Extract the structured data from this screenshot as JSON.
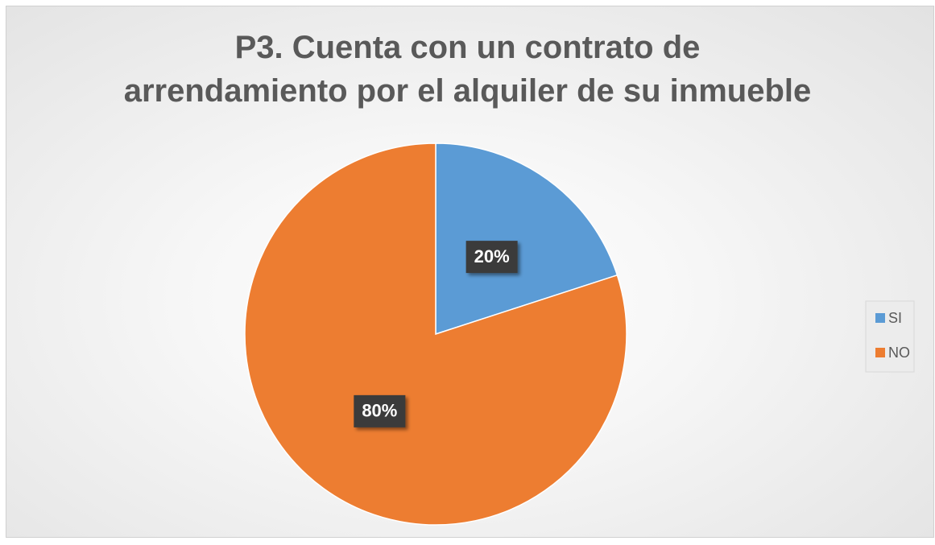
{
  "chart_data": {
    "type": "pie",
    "title": "P3. Cuenta con un contrato de\narrendamiento por el alquiler de su inmueble",
    "categories": [
      "SI",
      "NO"
    ],
    "values": [
      20,
      80
    ],
    "value_labels": [
      "20%",
      "80%"
    ],
    "colors": [
      "#5b9bd5",
      "#ed7d31"
    ],
    "legend": "right"
  }
}
